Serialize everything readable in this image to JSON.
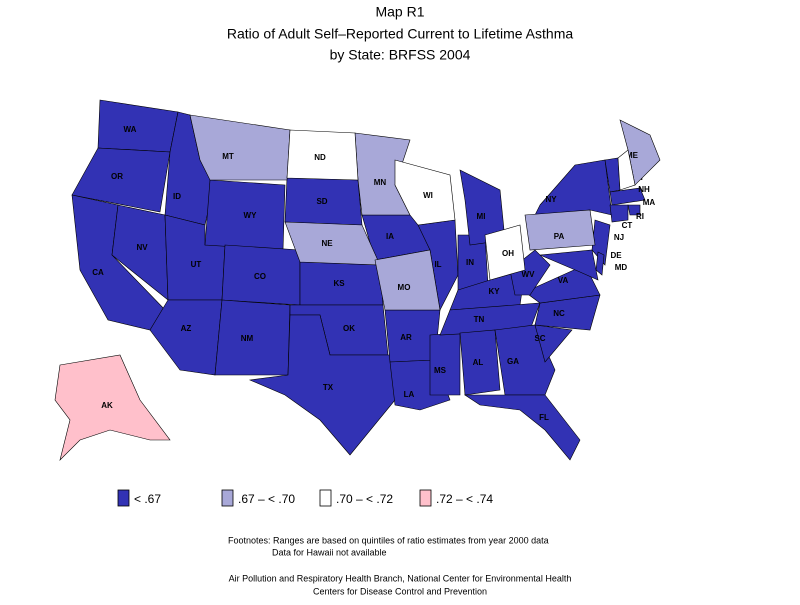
{
  "title": [
    "Map R1",
    "Ratio of Adult Self–Reported Current to Lifetime Asthma",
    "by State: BRFSS 2004"
  ],
  "legend": [
    {
      "label": "< .67",
      "color": "#3232b4",
      "states": [
        "WA",
        "OR",
        "CA",
        "NV",
        "ID",
        "UT",
        "AZ",
        "WY",
        "CO",
        "NM",
        "SD",
        "KS",
        "OK",
        "TX",
        "IA",
        "AR",
        "LA",
        "MS",
        "IL",
        "IN",
        "MI",
        "KY",
        "TN",
        "AL",
        "GA",
        "FL",
        "SC",
        "NC",
        "VA",
        "WV",
        "NY",
        "NJ",
        "DE",
        "MD",
        "VT",
        "MA",
        "RI",
        "CT"
      ]
    },
    {
      "label": ".67 – < .70",
      "color": "#a8a8d8",
      "states": [
        "MT",
        "MN",
        "NE",
        "MO",
        "PA",
        "ME"
      ]
    },
    {
      "label": ".70 – < .72",
      "color": "#ffffff",
      "states": [
        "ND",
        "WI",
        "OH",
        "NH"
      ]
    },
    {
      "label": ".72 – < .74",
      "color": "#ffc0cb",
      "states": [
        "AK"
      ]
    }
  ],
  "footnotes": [
    "Footnotes: Ranges are based on quintiles of ratio estimates from year 2000 data",
    "Data for Hawaii not available"
  ],
  "credits": [
    "Air Pollution and Respiratory Health Branch, National Center for Environmental Health",
    "Centers for Disease Control and Prevention"
  ]
}
